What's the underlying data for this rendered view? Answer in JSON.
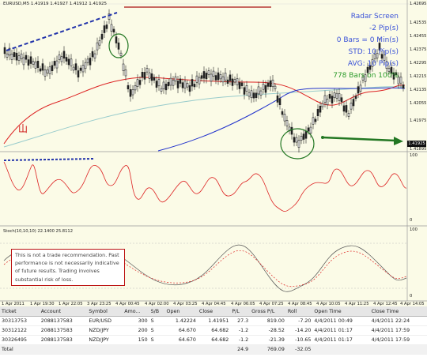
{
  "chart": {
    "symbol_label": "EURUSD,M5  1.41919 1.41927 1.41912 1.41925",
    "price_axis": [
      "1.42695",
      "1.42535",
      "1.42455",
      "1.42375",
      "1.42295",
      "1.42215",
      "1.42135",
      "1.42055",
      "1.41975",
      "1.41895"
    ],
    "current_price": "1.41925",
    "rsi_axis": [
      "100",
      "0"
    ],
    "stoch_label": "Stoch(10,10,10) 22.1400 25.8112",
    "stoch_axis": [
      "100",
      "0"
    ],
    "time_axis": [
      "1 Apr 2011",
      "1 Apr 19:30",
      "1 Apr 22:05",
      "3 Apr 23:25",
      "4 Apr 00:45",
      "4 Apr 02:00",
      "4 Apr 03:25",
      "4 Apr 04:45",
      "4 Apr 06:05",
      "4 Apr 07:25",
      "4 Apr 08:45",
      "4 Apr 10:05",
      "4 Apr 11:25",
      "4 Apr 12:45",
      "4 Apr 14:05"
    ],
    "colors": {
      "background": "#fbfbe7",
      "candles": "#222222",
      "ma_red": "#dd2222",
      "ma_blue": "#2233cc",
      "ma_teal": "#99cccc",
      "trendline": "#2233aa",
      "arrow": "#227722",
      "circle": "#227722",
      "top_line": "#aa1111"
    }
  },
  "radar": {
    "title": "Radar Screen",
    "pips": "-2 Pip(s)",
    "bars": "0 Bars = 0 Min(s)",
    "std": "STD: 10 Pip(s)",
    "avg": "AVG: 10 Pip(s)",
    "bars_count": "778 Bars on 100%"
  },
  "disclaimer": "This is not a trade recommendation. Past performance is not necessarily indicative of future results. Trading involves substantial risk of loss.",
  "table": {
    "headers": [
      "Ticket",
      "Account",
      "Symbol",
      "Amo...",
      "S/B",
      "Open",
      "Close",
      "P/L",
      "Gross P/L",
      "Roll",
      "Open Time",
      "Close Time"
    ],
    "rows": [
      [
        "30313753",
        "2088137583",
        "EUR/USD",
        "300",
        "S",
        "1.42224",
        "1.41951",
        "27.3",
        "819.00",
        "-7.20",
        "4/4/2011 00:49",
        "4/4/2011 22:24"
      ],
      [
        "30312122",
        "2088137583",
        "NZD/JPY",
        "200",
        "S",
        "64.670",
        "64.682",
        "-1.2",
        "-28.52",
        "-14.20",
        "4/4/2011 01:17",
        "4/4/2011 17:59"
      ],
      [
        "30326495",
        "2088137583",
        "NZD/JPY",
        "150",
        "S",
        "64.670",
        "64.682",
        "-1.2",
        "-21.39",
        "-10.65",
        "4/4/2011 01:17",
        "4/4/2011 17:59"
      ]
    ],
    "total": {
      "label": "Total",
      "pl": "24.9",
      "gross_pl": "769.09",
      "roll": "-32.05"
    }
  }
}
